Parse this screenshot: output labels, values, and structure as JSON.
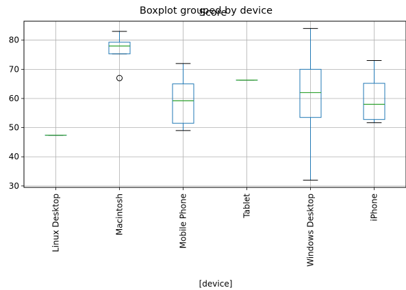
{
  "chart_data": {
    "type": "boxplot",
    "suptitle": "Boxplot grouped by device",
    "title": "Score",
    "xlabel": "[device]",
    "ylabel": "",
    "ylim": [
      29.5,
      86.5
    ],
    "yticks": [
      30,
      40,
      50,
      60,
      70,
      80
    ],
    "grid": true,
    "colors": {
      "box": "#1f77b4",
      "median": "#2ca02c",
      "whisker": "#000000",
      "grid": "#b0b0b0"
    },
    "categories": [
      "Linux Desktop",
      "Macintosh",
      "Mobile Phone",
      "Tablet",
      "Windows Desktop",
      "iPhone"
    ],
    "boxes": [
      {
        "category": "Linux Desktop",
        "whisker_low": 47.4,
        "q1": 47.4,
        "median": 47.4,
        "q3": 47.4,
        "whisker_high": 47.4,
        "fliers": []
      },
      {
        "category": "Macintosh",
        "whisker_low": 75.3,
        "q1": 75.3,
        "median": 78.0,
        "q3": 79.3,
        "whisker_high": 83.0,
        "fliers": [
          67.0
        ]
      },
      {
        "category": "Mobile Phone",
        "whisker_low": 49.0,
        "q1": 51.5,
        "median": 59.2,
        "q3": 65.0,
        "whisker_high": 72.0,
        "fliers": []
      },
      {
        "category": "Tablet",
        "whisker_low": 66.3,
        "q1": 66.3,
        "median": 66.3,
        "q3": 66.3,
        "whisker_high": 66.3,
        "fliers": []
      },
      {
        "category": "Windows Desktop",
        "whisker_low": 32.0,
        "q1": 53.5,
        "median": 62.0,
        "q3": 70.0,
        "whisker_high": 84.0,
        "fliers": []
      },
      {
        "category": "iPhone",
        "whisker_low": 51.7,
        "q1": 52.8,
        "median": 58.0,
        "q3": 65.2,
        "whisker_high": 73.0,
        "fliers": []
      }
    ]
  }
}
